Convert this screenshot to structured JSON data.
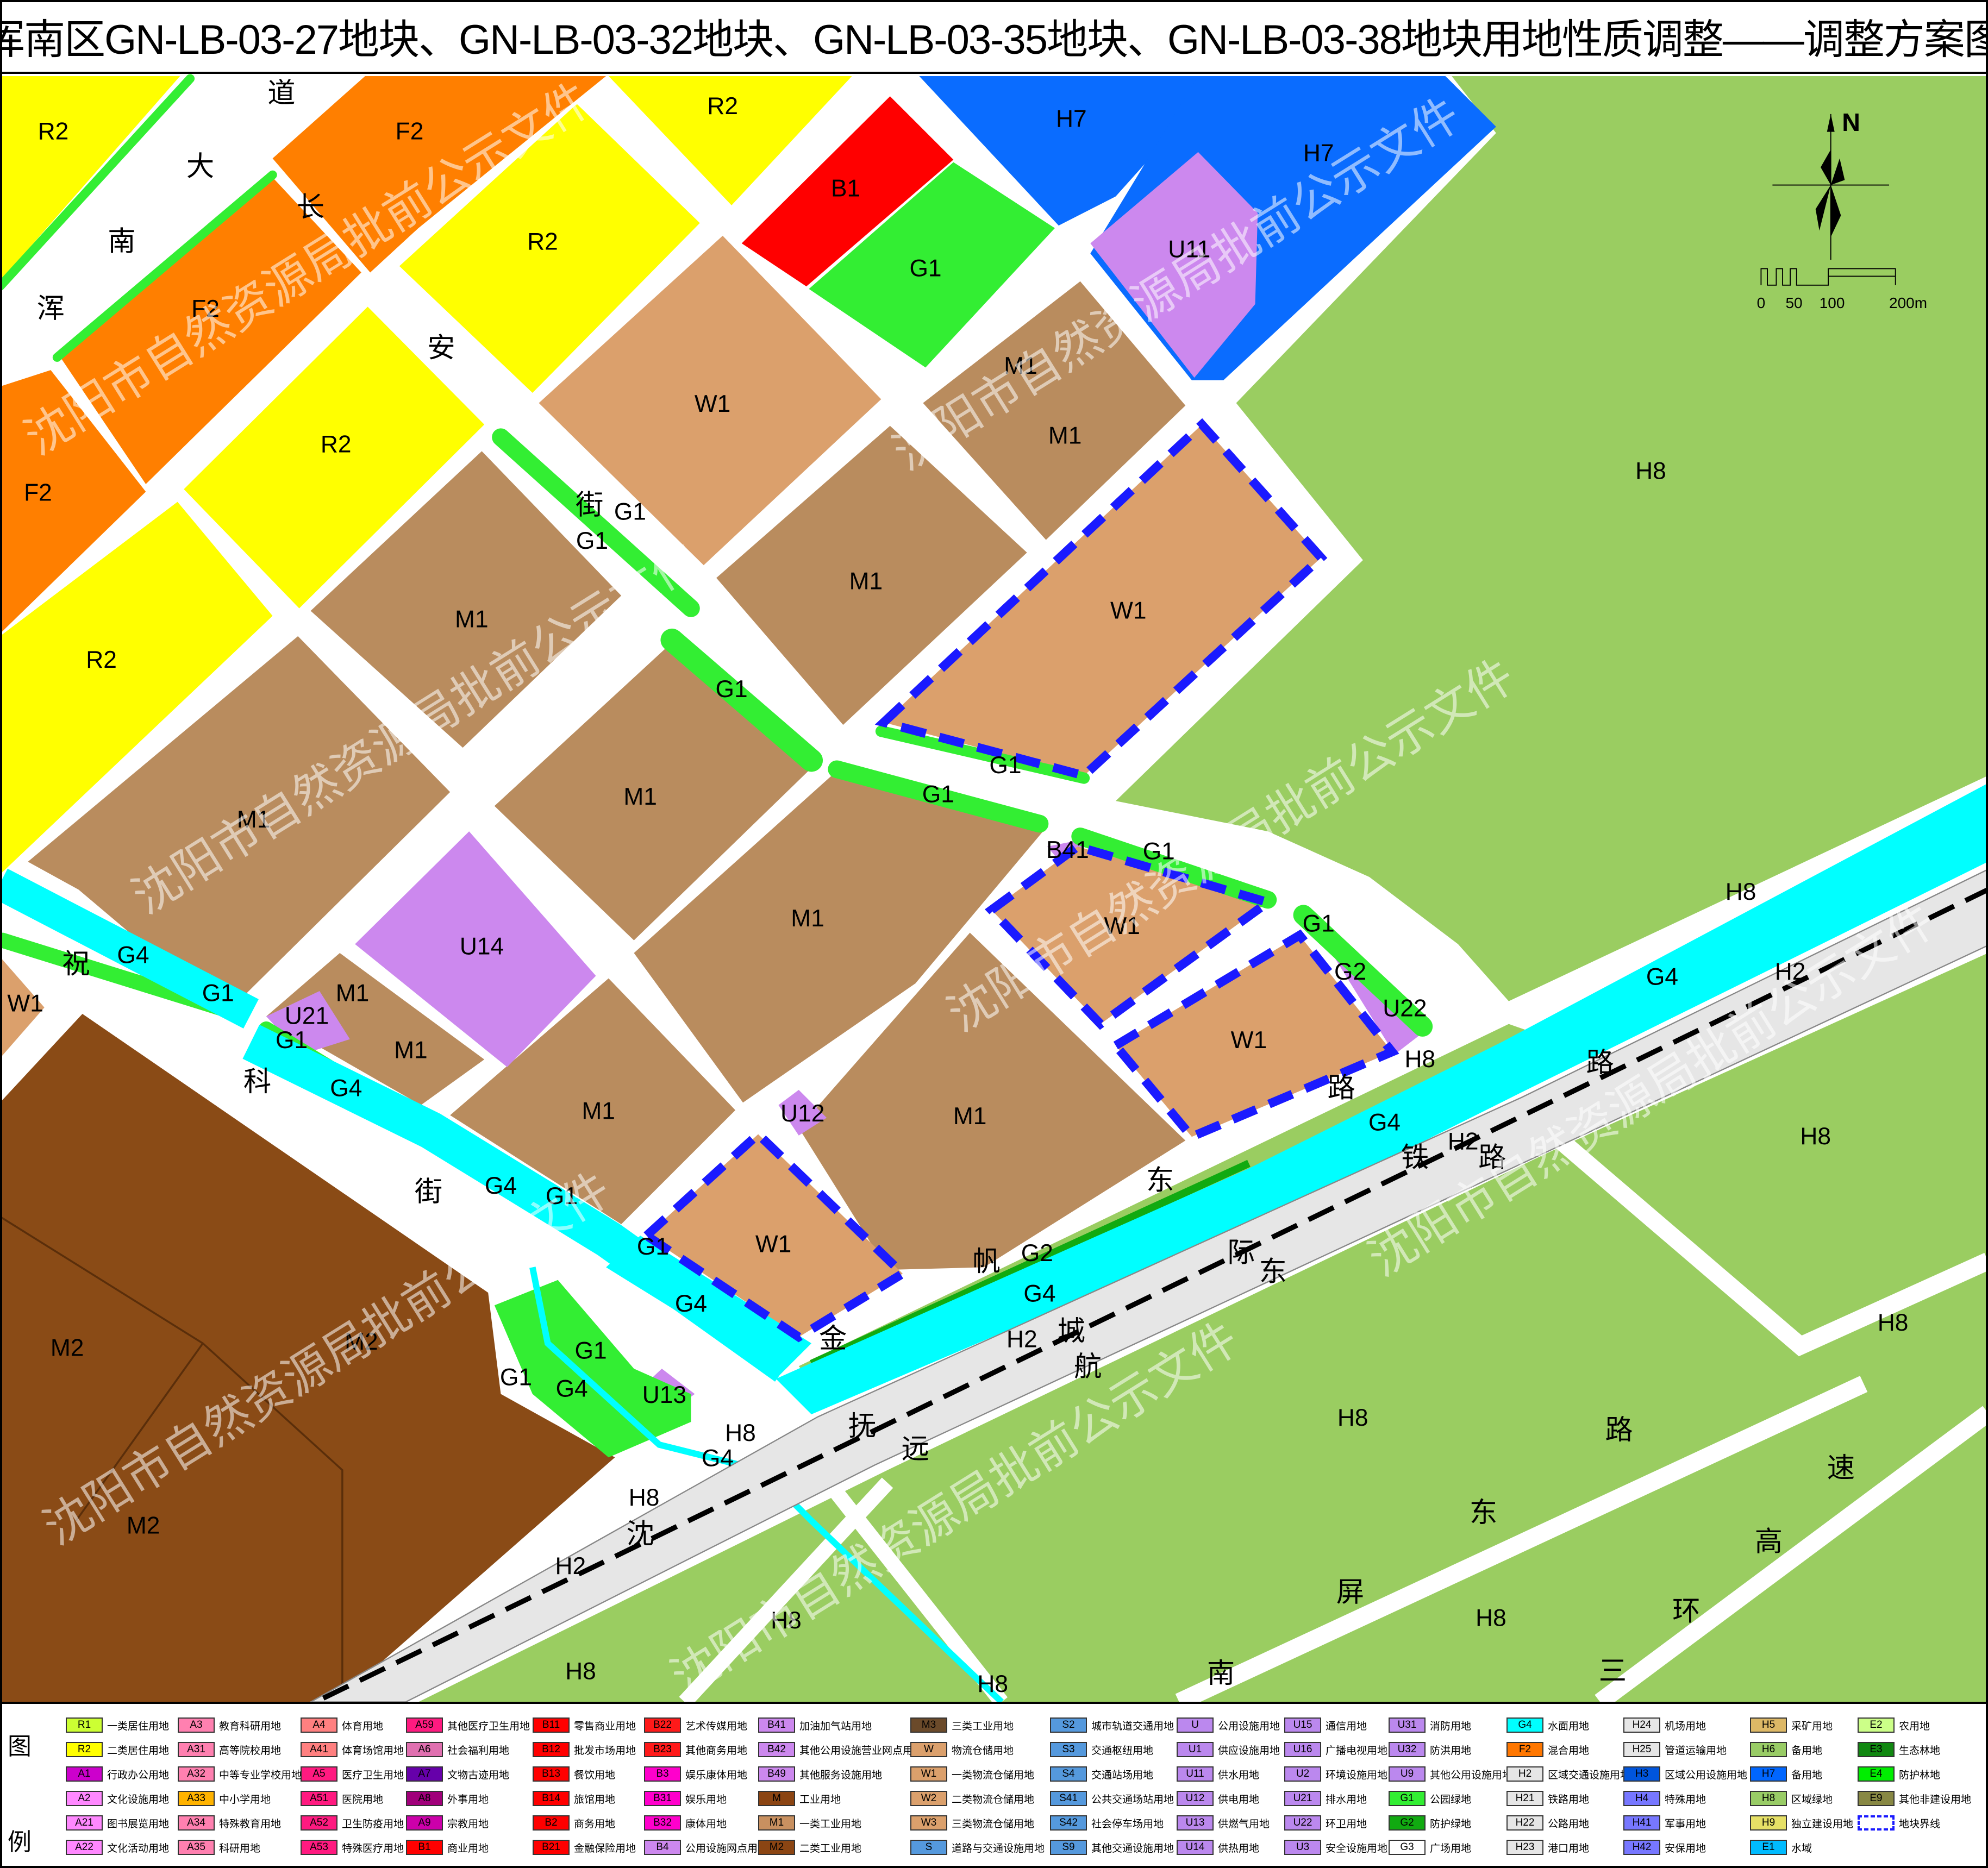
{
  "title": "浑南区GN-LB-03-27地块、GN-LB-03-32地块、GN-LB-03-35地块、GN-LB-03-38地块用地性质调整——调整方案图",
  "watermark": "沈阳市自然资源局批前公示文件",
  "compass": {
    "north": "N"
  },
  "scale_bar": {
    "ticks": [
      "0",
      "50",
      "100",
      "200m"
    ]
  },
  "map": {
    "colors": {
      "R2": "#ffff00",
      "F2": "#ff7f00",
      "B1": "#ff0000",
      "G1": "#33ee33",
      "G2": "#11aa11",
      "G4": "#00ffff",
      "H2": "#e6e6e6",
      "H7": "#0a6cff",
      "H8": "#9acd61",
      "U": "#cc88ee",
      "M1": "#b98c5e",
      "M2": "#8a4b16",
      "W1": "#dba06c",
      "boundary": "#1a1aff",
      "rail": "#000000"
    },
    "parcel_labels": [
      "R2",
      "F2",
      "R2",
      "B1",
      "H7",
      "H7",
      "U11",
      "G1",
      "R2",
      "F2",
      "R2",
      "F2",
      "W1",
      "M1",
      "M1",
      "H8",
      "G1",
      "G1",
      "M1",
      "M1",
      "W1",
      "R2",
      "G1",
      "G1",
      "M1",
      "G1",
      "M1",
      "B41",
      "G1",
      "M1",
      "W1",
      "G1",
      "H8",
      "U14",
      "G4",
      "G2",
      "H2",
      "G4",
      "M1",
      "G1",
      "U22",
      "U21",
      "W1",
      "G1",
      "M1",
      "W1",
      "H8",
      "G4",
      "M1",
      "U12",
      "M1",
      "G4",
      "H8",
      "H2",
      "G4",
      "G1",
      "W1",
      "G1",
      "G2",
      "G4",
      "G4",
      "M2",
      "M2",
      "H8",
      "H2",
      "G1",
      "G1",
      "G4",
      "U13",
      "H8",
      "H8",
      "G4",
      "H8",
      "M2",
      "H2",
      "H8",
      "H8",
      "H8",
      "H8"
    ],
    "road_labels": [
      "道",
      "大",
      "长",
      "南",
      "安",
      "浑",
      "街",
      "祝",
      "科",
      "街",
      "东",
      "帆",
      "金",
      "路",
      "铁",
      "际",
      "东",
      "城",
      "航",
      "抚",
      "远",
      "沈",
      "路",
      "路",
      "路",
      "速",
      "东",
      "高",
      "屏",
      "环",
      "南",
      "三"
    ]
  },
  "legend": {
    "title_chars": [
      "图",
      "例"
    ],
    "columns": [
      [
        {
          "code": "R1",
          "name": "一类居住用地",
          "color": "#ccff33"
        },
        {
          "code": "R2",
          "name": "二类居住用地",
          "color": "#ffff00"
        },
        {
          "code": "A1",
          "name": "行政办公用地",
          "color": "#cc00cc"
        },
        {
          "code": "A2",
          "name": "文化设施用地",
          "color": "#ff88ff"
        },
        {
          "code": "A21",
          "name": "图书展览用地",
          "color": "#ff88ff"
        },
        {
          "code": "A22",
          "name": "文化活动用地",
          "color": "#ff88ff"
        }
      ],
      [
        {
          "code": "A3",
          "name": "教育科研用地",
          "color": "#ff80b0"
        },
        {
          "code": "A31",
          "name": "高等院校用地",
          "color": "#ff80b0"
        },
        {
          "code": "A32",
          "name": "中等专业学校用地",
          "color": "#ff80b0"
        },
        {
          "code": "A33",
          "name": "中小学用地",
          "color": "#ffb300"
        },
        {
          "code": "A34",
          "name": "特殊教育用地",
          "color": "#ff80b0"
        },
        {
          "code": "A35",
          "name": "科研用地",
          "color": "#ff80b0"
        }
      ],
      [
        {
          "code": "A4",
          "name": "体育用地",
          "color": "#ff8080"
        },
        {
          "code": "A41",
          "name": "体育场馆用地",
          "color": "#ff8080"
        },
        {
          "code": "A5",
          "name": "医疗卫生用地",
          "color": "#ff1a80"
        },
        {
          "code": "A51",
          "name": "医院用地",
          "color": "#ff1a80"
        },
        {
          "code": "A52",
          "name": "卫生防疫用地",
          "color": "#ff1a80"
        },
        {
          "code": "A53",
          "name": "特殊医疗用地",
          "color": "#ff1a80"
        }
      ],
      [
        {
          "code": "A59",
          "name": "其他医疗卫生用地",
          "color": "#ff1a80"
        },
        {
          "code": "A6",
          "name": "社会福利用地",
          "color": "#e070b0"
        },
        {
          "code": "A7",
          "name": "文物古迹用地",
          "color": "#6600aa"
        },
        {
          "code": "A8",
          "name": "外事用地",
          "color": "#a0007a"
        },
        {
          "code": "A9",
          "name": "宗教用地",
          "color": "#cc00aa"
        },
        {
          "code": "B1",
          "name": "商业用地",
          "color": "#ff0000"
        }
      ],
      [
        {
          "code": "B11",
          "name": "零售商业用地",
          "color": "#ff0000"
        },
        {
          "code": "B12",
          "name": "批发市场用地",
          "color": "#ff0000"
        },
        {
          "code": "B13",
          "name": "餐饮用地",
          "color": "#ff0000"
        },
        {
          "code": "B14",
          "name": "旅馆用地",
          "color": "#ff0000"
        },
        {
          "code": "B2",
          "name": "商务用地",
          "color": "#ff0000"
        },
        {
          "code": "B21",
          "name": "金融保险用地",
          "color": "#ff0000"
        }
      ],
      [
        {
          "code": "B22",
          "name": "艺术传媒用地",
          "color": "#ff1a1a"
        },
        {
          "code": "B23",
          "name": "其他商务用地",
          "color": "#ff1a1a"
        },
        {
          "code": "B3",
          "name": "娱乐康体用地",
          "color": "#ff00cc"
        },
        {
          "code": "B31",
          "name": "娱乐用地",
          "color": "#ff00cc"
        },
        {
          "code": "B32",
          "name": "康体用地",
          "color": "#ff00cc"
        },
        {
          "code": "B4",
          "name": "公用设施网点用地",
          "color": "#cc88ee"
        }
      ],
      [
        {
          "code": "B41",
          "name": "加油加气站用地",
          "color": "#cc88ee"
        },
        {
          "code": "B42",
          "name": "其他公用设施营业网点用地",
          "color": "#cc88ee"
        },
        {
          "code": "B49",
          "name": "其他服务设施用地",
          "color": "#cc88ee"
        },
        {
          "code": "M",
          "name": "工业用地",
          "color": "#8b4513"
        },
        {
          "code": "M1",
          "name": "一类工业用地",
          "color": "#c89060"
        },
        {
          "code": "M2",
          "name": "二类工业用地",
          "color": "#8b4513"
        }
      ],
      [
        {
          "code": "M3",
          "name": "三类工业用地",
          "color": "#6b4a2a"
        },
        {
          "code": "W",
          "name": "物流仓储用地",
          "color": "#dba06c"
        },
        {
          "code": "W1",
          "name": "一类物流仓储用地",
          "color": "#dba06c"
        },
        {
          "code": "W2",
          "name": "二类物流仓储用地",
          "color": "#dba06c"
        },
        {
          "code": "W3",
          "name": "三类物流仓储用地",
          "color": "#dba06c"
        },
        {
          "code": "S",
          "name": "道路与交通设施用地",
          "color": "#5599dd"
        }
      ],
      [
        {
          "code": "S2",
          "name": "城市轨道交通用地",
          "color": "#5599dd"
        },
        {
          "code": "S3",
          "name": "交通枢纽用地",
          "color": "#5599dd"
        },
        {
          "code": "S4",
          "name": "交通站场用地",
          "color": "#5599dd"
        },
        {
          "code": "S41",
          "name": "公共交通场站用地",
          "color": "#5599dd"
        },
        {
          "code": "S42",
          "name": "社会停车场用地",
          "color": "#5599dd"
        },
        {
          "code": "S9",
          "name": "其他交通设施用地",
          "color": "#5599dd"
        }
      ],
      [
        {
          "code": "U",
          "name": "公用设施用地",
          "color": "#bb88ee"
        },
        {
          "code": "U1",
          "name": "供应设施用地",
          "color": "#bb88ee"
        },
        {
          "code": "U11",
          "name": "供水用地",
          "color": "#bb88ee"
        },
        {
          "code": "U12",
          "name": "供电用地",
          "color": "#bb88ee"
        },
        {
          "code": "U13",
          "name": "供燃气用地",
          "color": "#bb88ee"
        },
        {
          "code": "U14",
          "name": "供热用地",
          "color": "#bb88ee"
        }
      ],
      [
        {
          "code": "U15",
          "name": "通信用地",
          "color": "#bb88ee"
        },
        {
          "code": "U16",
          "name": "广播电视用地",
          "color": "#bb88ee"
        },
        {
          "code": "U2",
          "name": "环境设施用地",
          "color": "#bb88ee"
        },
        {
          "code": "U21",
          "name": "排水用地",
          "color": "#bb88ee"
        },
        {
          "code": "U22",
          "name": "环卫用地",
          "color": "#bb88ee"
        },
        {
          "code": "U3",
          "name": "安全设施用地",
          "color": "#bb88ee"
        }
      ],
      [
        {
          "code": "U31",
          "name": "消防用地",
          "color": "#bb88ee"
        },
        {
          "code": "U32",
          "name": "防洪用地",
          "color": "#bb88ee"
        },
        {
          "code": "U9",
          "name": "其他公用设施用地",
          "color": "#bb88ee"
        },
        {
          "code": "G1",
          "name": "公园绿地",
          "color": "#33ee33"
        },
        {
          "code": "G2",
          "name": "防护绿地",
          "color": "#11aa11"
        },
        {
          "code": "G3",
          "name": "广场用地",
          "color": "#ffffff"
        }
      ],
      [
        {
          "code": "G4",
          "name": "水面用地",
          "color": "#00ffff"
        },
        {
          "code": "F2",
          "name": "混合用地",
          "color": "#ff7700"
        },
        {
          "code": "H2",
          "name": "区域交通设施用地",
          "color": "#e6e6e6"
        },
        {
          "code": "H21",
          "name": "铁路用地",
          "color": "#e6e6e6"
        },
        {
          "code": "H22",
          "name": "公路用地",
          "color": "#e6e6e6"
        },
        {
          "code": "H23",
          "name": "港口用地",
          "color": "#e6e6e6"
        }
      ],
      [
        {
          "code": "H24",
          "name": "机场用地",
          "color": "#e6e6e6"
        },
        {
          "code": "H25",
          "name": "管道运输用地",
          "color": "#e6e6e6"
        },
        {
          "code": "H3",
          "name": "区域公用设施用地",
          "color": "#0055dd"
        },
        {
          "code": "H4",
          "name": "特殊用地",
          "color": "#7777ff"
        },
        {
          "code": "H41",
          "name": "军事用地",
          "color": "#7777ff"
        },
        {
          "code": "H42",
          "name": "安保用地",
          "color": "#7777ff"
        }
      ],
      [
        {
          "code": "H5",
          "name": "采矿用地",
          "color": "#ddb866"
        },
        {
          "code": "H6",
          "name": "备用地",
          "color": "#99cc66"
        },
        {
          "code": "H7",
          "name": "备用地",
          "color": "#0066ff"
        },
        {
          "code": "H8",
          "name": "区域绿地",
          "color": "#99cc66"
        },
        {
          "code": "H9",
          "name": "独立建设用地",
          "color": "#e6e066"
        },
        {
          "code": "E1",
          "name": "水域",
          "color": "#00bbff"
        }
      ],
      [
        {
          "code": "E2",
          "name": "农用地",
          "color": "#ccff88"
        },
        {
          "code": "E3",
          "name": "生态林地",
          "color": "#118811"
        },
        {
          "code": "E4",
          "name": "防护林地",
          "color": "#00ee00"
        },
        {
          "code": "E9",
          "name": "其他非建设用地",
          "color": "#888844"
        },
        {
          "code": "",
          "name": "地块界线",
          "color": "#1a1aff",
          "boundary": true
        }
      ]
    ]
  }
}
